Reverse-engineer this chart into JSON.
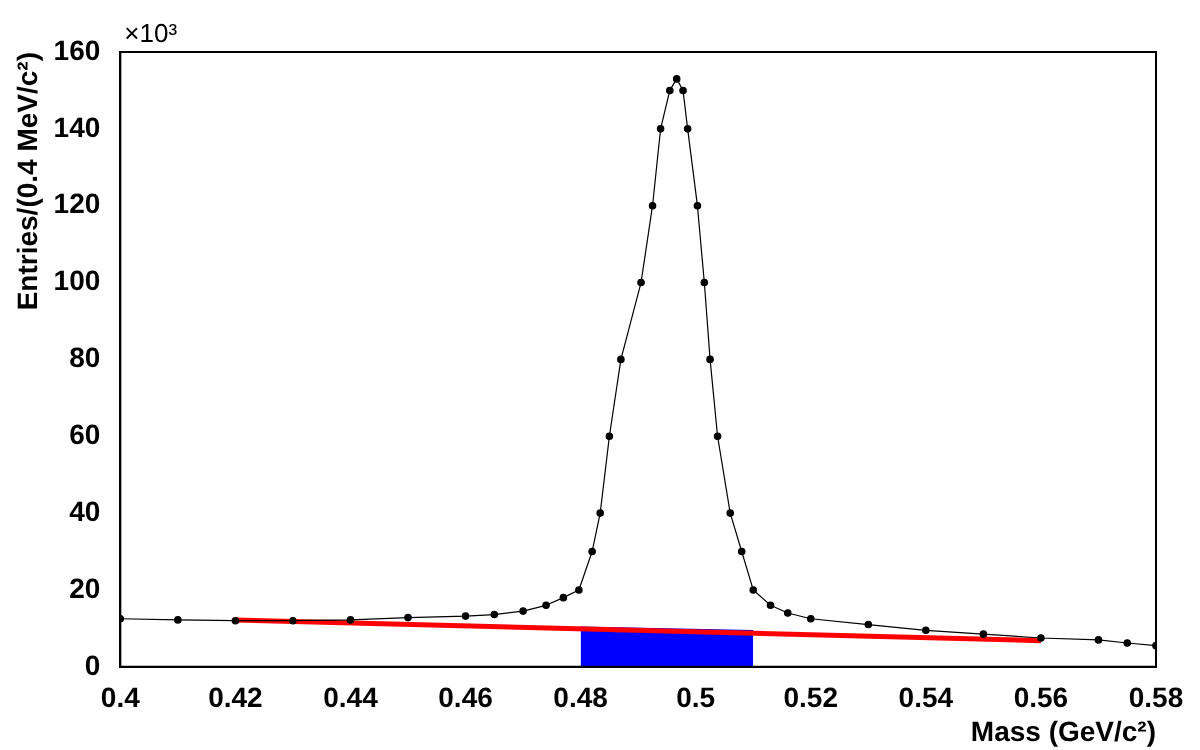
{
  "chart_data": {
    "type": "line",
    "xlabel": "Mass (GeV/c²)",
    "ylabel": "Entries/(0.4 MeV/c²)",
    "annotations": [
      "×10³"
    ],
    "xlim": [
      0.4,
      0.58
    ],
    "xticks": [
      0.4,
      0.42,
      0.44,
      0.46,
      0.48,
      0.5,
      0.52,
      0.54,
      0.56,
      0.58
    ],
    "ylim": [
      0,
      160
    ],
    "yticks": [
      0,
      20,
      40,
      60,
      80,
      100,
      120,
      140,
      160
    ],
    "grid": false,
    "legend": false,
    "series": [
      {
        "type": "area",
        "color": "#0000ff",
        "x": [
          0.48,
          0.51
        ],
        "values": [
          10.2,
          9.3
        ]
      },
      {
        "type": "line",
        "color": "#ff0000",
        "marker": "none",
        "x": [
          0.42,
          0.56
        ],
        "values": [
          12.2,
          6.8
        ]
      },
      {
        "color": "#000000",
        "marker": "circle",
        "x": [
          0.4,
          0.41,
          0.42,
          0.43,
          0.44,
          0.45,
          0.46,
          0.465,
          0.47,
          0.474,
          0.477,
          0.4797,
          0.482,
          0.4834,
          0.485,
          0.487,
          0.4905,
          0.4925,
          0.4939,
          0.4955,
          0.4967,
          0.4978,
          0.4986,
          0.5003,
          0.5015,
          0.5025,
          0.5038,
          0.506,
          0.508,
          0.51,
          0.513,
          0.516,
          0.52,
          0.53,
          0.54,
          0.55,
          0.56,
          0.57,
          0.575,
          0.58
        ],
        "values": [
          12.5,
          12.2,
          12,
          12,
          12.2,
          12.8,
          13.2,
          13.6,
          14.5,
          16,
          18,
          20,
          30,
          40,
          60,
          80,
          100,
          120,
          140,
          150,
          153,
          150,
          140,
          120,
          100,
          80,
          60,
          40,
          30,
          20,
          16,
          14,
          12.5,
          11,
          9.5,
          8.5,
          7.5,
          7,
          6.2,
          5.5
        ]
      }
    ]
  }
}
